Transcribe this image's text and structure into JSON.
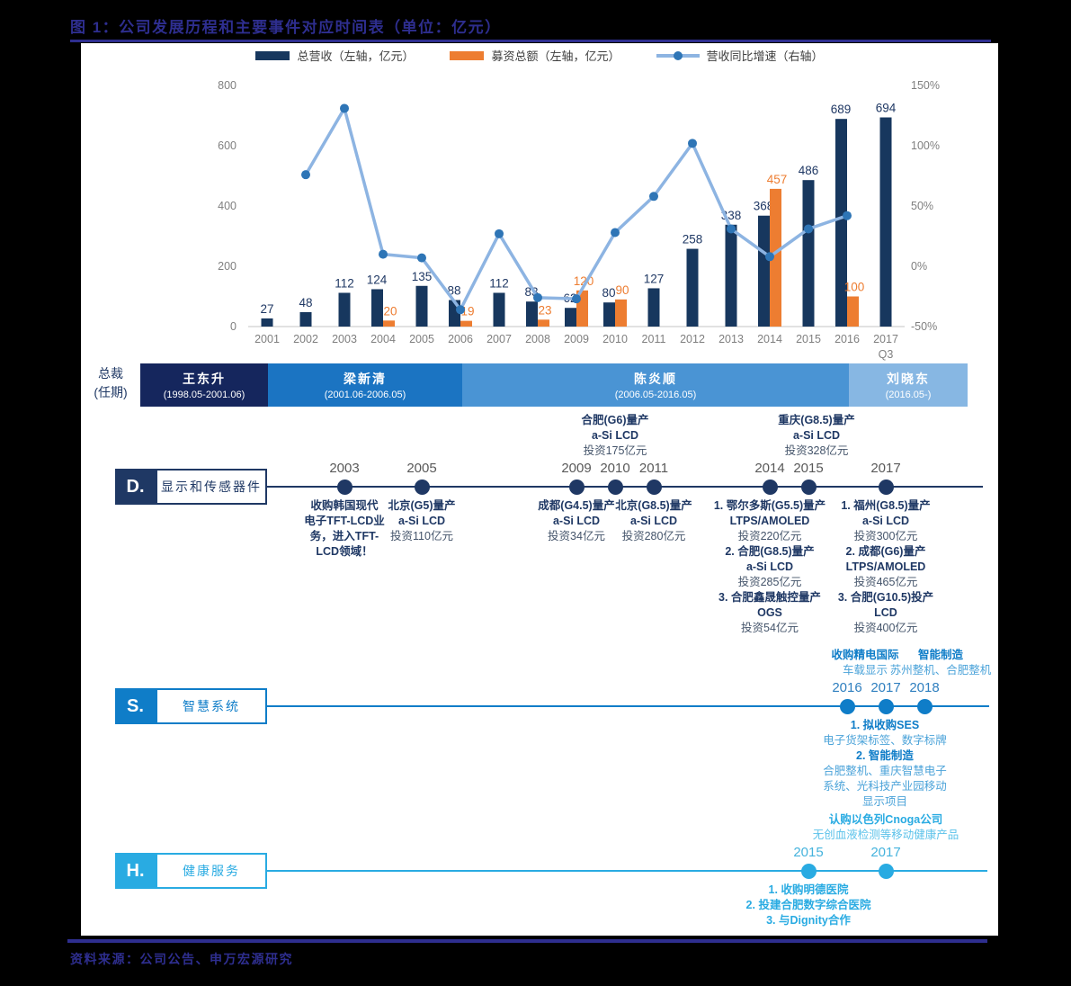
{
  "figure": {
    "title": "图 1：公司发展历程和主要事件对应时间表（单位：亿元）",
    "source": "资料来源：公司公告、申万宏源研究"
  },
  "legend": [
    {
      "label": "总营收（左轴，亿元）",
      "type": "bar",
      "color": "#17375e"
    },
    {
      "label": "募资总额（左轴，亿元）",
      "type": "bar",
      "color": "#ed7d31"
    },
    {
      "label": "营收同比增速（右轴）",
      "type": "line",
      "color": "#8db4e2",
      "marker_color": "#2e75b6"
    }
  ],
  "chart_data": {
    "type": "combo",
    "categories": [
      "2001",
      "2002",
      "2003",
      "2004",
      "2005",
      "2006",
      "2007",
      "2008",
      "2009",
      "2010",
      "2011",
      "2012",
      "2013",
      "2014",
      "2015",
      "2016",
      "2017"
    ],
    "last_category_note": "Q3",
    "series": [
      {
        "name": "总营收（左轴，亿元）",
        "type": "bar",
        "color": "#17375e",
        "values": [
          27,
          48,
          112,
          124,
          135,
          88,
          112,
          83,
          62,
          80,
          127,
          258,
          338,
          368,
          486,
          689,
          694
        ]
      },
      {
        "name": "募资总额（左轴，亿元）",
        "type": "bar",
        "color": "#ed7d31",
        "values": [
          null,
          null,
          null,
          20,
          null,
          19,
          null,
          23,
          120,
          90,
          null,
          null,
          null,
          457,
          null,
          100,
          null
        ]
      },
      {
        "name": "营收同比增速（右轴）",
        "type": "line",
        "unit": "%",
        "color": "#8db4e2",
        "marker_color": "#2e75b6",
        "values": [
          null,
          76,
          131,
          10,
          7,
          -36,
          27,
          -26,
          -27,
          28,
          58,
          102,
          31,
          8,
          31,
          42,
          null
        ]
      }
    ],
    "left_axis": {
      "ticks": [
        800,
        600,
        400,
        200,
        0
      ],
      "range": [
        0,
        800
      ]
    },
    "right_axis": {
      "ticks": [
        "150%",
        "100%",
        "50%",
        "0%",
        "-50%"
      ],
      "range": [
        -50,
        150
      ]
    },
    "grid": false,
    "legend_position": "top"
  },
  "president_row": {
    "row_label_line1": "总裁",
    "row_label_line2": "(任期)",
    "segments": [
      {
        "name": "王东升",
        "term": "(1998.05-2001.06)",
        "color": "#15265d"
      },
      {
        "name": "梁新清",
        "term": "(2001.06-2006.05)",
        "color": "#1b74c2"
      },
      {
        "name": "陈炎顺",
        "term": "(2006.05-2016.05)",
        "color": "#4a94d4"
      },
      {
        "name": "刘晓东",
        "term": "(2016.05-)",
        "color": "#87b7e3"
      }
    ]
  },
  "timelines": [
    {
      "letter": "D.",
      "label": "显示和传感器件",
      "color": "#1f3864",
      "events": [
        {
          "year": "2003",
          "below": [
            {
              "t": "收购韩国现代",
              "s": "b"
            },
            {
              "t": "电子TFT-LCD业",
              "s": "b"
            },
            {
              "t": "务，进入TFT-",
              "s": "b"
            },
            {
              "t": "LCD领域！",
              "s": "b"
            }
          ]
        },
        {
          "year": "2005",
          "below": [
            {
              "t": "北京(G5)量产",
              "s": "b"
            },
            {
              "t": "a-Si LCD",
              "s": "b"
            },
            {
              "t": "投资110亿元",
              "s": "l"
            }
          ]
        },
        {
          "year": "2009",
          "below": [
            {
              "t": "成都(G4.5)量产",
              "s": "b"
            },
            {
              "t": "a-Si LCD",
              "s": "b"
            },
            {
              "t": "投资34亿元",
              "s": "l"
            }
          ]
        },
        {
          "year": "2010",
          "above": [
            {
              "t": "合肥(G6)量产",
              "s": "b"
            },
            {
              "t": "a-Si LCD",
              "s": "b"
            },
            {
              "t": "投资175亿元",
              "s": "l"
            }
          ]
        },
        {
          "year": "2011",
          "below": [
            {
              "t": "北京(G8.5)量产",
              "s": "b"
            },
            {
              "t": "a-Si LCD",
              "s": "b"
            },
            {
              "t": "投资280亿元",
              "s": "l"
            }
          ]
        },
        {
          "year": "2014",
          "below": [
            {
              "t": "1. 鄂尔多斯(G5.5)量产",
              "s": "b"
            },
            {
              "t": "LTPS/AMOLED",
              "s": "b"
            },
            {
              "t": "投资220亿元",
              "s": "l"
            },
            {
              "t": "2. 合肥(G8.5)量产",
              "s": "b"
            },
            {
              "t": "a-Si LCD",
              "s": "b"
            },
            {
              "t": "投资285亿元",
              "s": "l"
            },
            {
              "t": "3. 合肥鑫晟触控量产",
              "s": "b"
            },
            {
              "t": "OGS",
              "s": "b"
            },
            {
              "t": "投资54亿元",
              "s": "l"
            }
          ]
        },
        {
          "year": "2015",
          "above": [
            {
              "t": "重庆(G8.5)量产",
              "s": "b"
            },
            {
              "t": "a-Si LCD",
              "s": "b"
            },
            {
              "t": "投资328亿元",
              "s": "l"
            }
          ]
        },
        {
          "year": "2017",
          "below": [
            {
              "t": "1. 福州(G8.5)量产",
              "s": "b"
            },
            {
              "t": "a-Si LCD",
              "s": "b"
            },
            {
              "t": "投资300亿元",
              "s": "l"
            },
            {
              "t": "2. 成都(G6)量产",
              "s": "b"
            },
            {
              "t": "LTPS/AMOLED",
              "s": "b"
            },
            {
              "t": "投资465亿元",
              "s": "l"
            },
            {
              "t": "3. 合肥(G10.5)投产",
              "s": "b"
            },
            {
              "t": "LCD",
              "s": "b"
            },
            {
              "t": "投资400亿元",
              "s": "l"
            }
          ]
        }
      ]
    },
    {
      "letter": "S.",
      "label": "智慧系统",
      "color": "#0f7dc8",
      "events": [
        {
          "year": "2016",
          "above": [
            {
              "t": "收购精电国际",
              "s": "b"
            },
            {
              "t": "车载显示",
              "s": "l"
            }
          ],
          "below": [
            {
              "t": "1. 拟收购SES",
              "s": "b"
            },
            {
              "t": "电子货架标签、数字标牌",
              "s": "l"
            },
            {
              "t": "2. 智能制造",
              "s": "b"
            },
            {
              "t": "合肥整机、重庆智慧电子",
              "s": "l"
            },
            {
              "t": "系统、光科技产业园移动",
              "s": "l"
            },
            {
              "t": "显示项目",
              "s": "l"
            }
          ]
        },
        {
          "year": "2017"
        },
        {
          "year": "2018",
          "above": [
            {
              "t": "智能制造",
              "s": "b"
            },
            {
              "t": "苏州整机、合肥整机",
              "s": "l"
            }
          ]
        }
      ]
    },
    {
      "letter": "H.",
      "label": "健康服务",
      "color": "#29abe2",
      "events": [
        {
          "year": "2015",
          "below": [
            {
              "t": "1. 收购明德医院",
              "s": "b"
            },
            {
              "t": "2. 投建合肥数字综合医院",
              "s": "b"
            },
            {
              "t": "3. 与Dignity合作",
              "s": "b"
            }
          ]
        },
        {
          "year": "2017",
          "above": [
            {
              "t": "认购以色列Cnoga公司",
              "s": "b"
            },
            {
              "t": "无创血液检测等移动健康产品",
              "s": "l"
            }
          ]
        }
      ]
    }
  ]
}
